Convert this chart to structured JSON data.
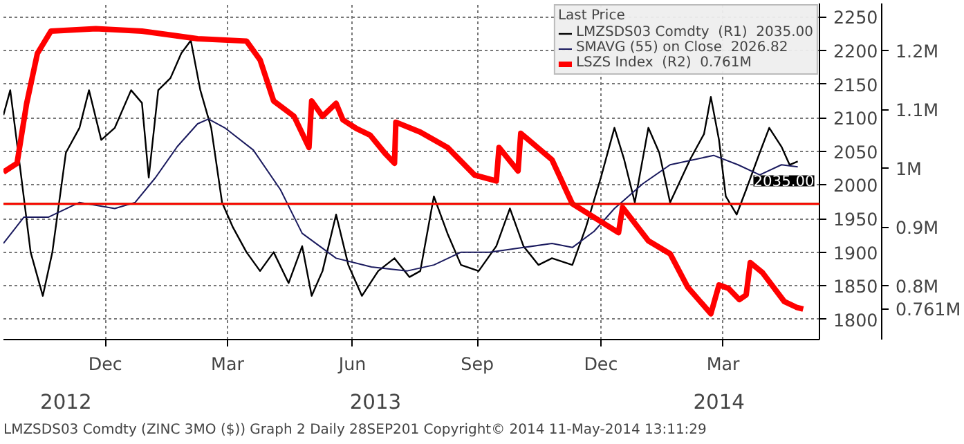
{
  "chart_data": {
    "type": "line",
    "legend_title": "Last Price",
    "series": [
      {
        "name": "LMZSDS03 Comdty  (R1)  2035.00",
        "color": "#000000",
        "x": [
          "2012-10-01",
          "2012-10-06",
          "2012-10-13",
          "2012-10-21",
          "2012-10-30",
          "2012-11-06",
          "2012-11-16",
          "2012-11-26",
          "2012-12-03",
          "2012-12-12",
          "2012-12-22",
          "2013-01-03",
          "2013-01-11",
          "2013-01-16",
          "2013-01-23",
          "2013-02-01",
          "2013-02-09",
          "2013-02-16",
          "2013-02-23",
          "2013-03-03",
          "2013-03-11",
          "2013-03-19",
          "2013-03-29",
          "2013-04-08",
          "2013-04-18",
          "2013-04-29",
          "2013-05-09",
          "2013-05-16",
          "2013-05-24",
          "2013-06-03",
          "2013-06-12",
          "2013-06-22",
          "2013-07-04",
          "2013-07-16",
          "2013-07-27",
          "2013-08-04",
          "2013-08-14",
          "2013-08-24",
          "2013-09-03",
          "2013-09-16",
          "2013-09-29",
          "2013-10-09",
          "2013-10-19",
          "2013-10-30",
          "2013-11-09",
          "2013-11-24",
          "2013-12-04",
          "2013-12-15",
          "2013-12-25",
          "2014-01-01",
          "2014-01-09",
          "2014-01-19",
          "2014-01-27",
          "2014-02-04",
          "2014-02-19",
          "2014-03-01",
          "2014-03-06",
          "2014-03-12",
          "2014-03-17",
          "2014-03-25",
          "2014-04-01",
          "2014-04-11",
          "2014-04-18",
          "2014-04-27",
          "2014-05-03",
          "2014-05-09"
        ],
        "values": [
          2104,
          2141,
          2030,
          1900,
          1835,
          1900,
          2048,
          2085,
          2141,
          2067,
          2085,
          2141,
          2122,
          2011,
          2141,
          2159,
          2196,
          2215,
          2141,
          2085,
          1974,
          1937,
          1900,
          1872,
          1900,
          1854,
          1909,
          1835,
          1872,
          1956,
          1881,
          1835,
          1872,
          1891,
          1863,
          1872,
          1983,
          1928,
          1881,
          1872,
          1909,
          1965,
          1909,
          1881,
          1891,
          1881,
          1937,
          2011,
          2085,
          2039,
          1974,
          2085,
          2048,
          1974,
          2039,
          2076,
          2131,
          2067,
          1983,
          1956,
          1993,
          2048,
          2085,
          2057,
          2030,
          2035
        ]
      },
      {
        "name": "SMAVG (55) on Close  2026.82",
        "color": "#1a1a5e",
        "x": [
          "2012-10-01",
          "2012-10-16",
          "2012-11-03",
          "2012-11-26",
          "2012-12-22",
          "2013-01-06",
          "2013-01-21",
          "2013-02-06",
          "2013-02-21",
          "2013-03-01",
          "2013-03-13",
          "2013-04-03",
          "2013-04-23",
          "2013-05-09",
          "2013-06-03",
          "2013-06-29",
          "2013-07-25",
          "2013-08-14",
          "2013-09-03",
          "2013-09-24",
          "2013-10-19",
          "2013-11-09",
          "2013-11-24",
          "2013-12-10",
          "2013-12-25",
          "2014-01-15",
          "2014-02-04",
          "2014-03-08",
          "2014-03-26",
          "2014-04-11",
          "2014-04-27",
          "2014-05-09"
        ],
        "values": [
          1913,
          1952,
          1952,
          1974,
          1965,
          1974,
          2011,
          2057,
          2091,
          2098,
          2085,
          2052,
          1993,
          1928,
          1891,
          1878,
          1872,
          1881,
          1900,
          1900,
          1907,
          1913,
          1907,
          1931,
          1965,
          2002,
          2030,
          2044,
          2030,
          2015,
          2030,
          2027
        ]
      },
      {
        "name": "LSZS Index  (R2)  0.761M",
        "color": "#ff0000",
        "axis": "y2",
        "x": [
          "2012-10-01",
          "2012-10-11",
          "2012-10-18",
          "2012-10-26",
          "2012-11-05",
          "2012-12-08",
          "2013-01-11",
          "2013-02-21",
          "2013-03-29",
          "2013-04-08",
          "2013-04-18",
          "2013-05-03",
          "2013-05-14",
          "2013-05-16",
          "2013-05-24",
          "2013-06-03",
          "2013-06-08",
          "2013-06-18",
          "2013-06-28",
          "2013-07-09",
          "2013-07-16",
          "2013-07-17",
          "2013-08-04",
          "2013-08-24",
          "2013-09-13",
          "2013-09-29",
          "2013-10-01",
          "2013-10-15",
          "2013-10-17",
          "2013-11-09",
          "2013-11-24",
          "2013-12-28",
          "2013-12-31",
          "2014-01-19",
          "2014-02-04",
          "2014-02-17",
          "2014-03-06",
          "2014-03-12",
          "2014-03-19",
          "2014-03-27",
          "2014-04-01",
          "2014-04-04",
          "2014-04-13",
          "2014-04-29",
          "2014-05-08",
          "2014-05-13"
        ],
        "values": [
          0.994,
          1.009,
          1.11,
          1.196,
          1.234,
          1.238,
          1.234,
          1.221,
          1.217,
          1.185,
          1.115,
          1.089,
          1.036,
          1.115,
          1.089,
          1.111,
          1.083,
          1.068,
          1.057,
          1.026,
          1.009,
          1.079,
          1.062,
          1.036,
          0.989,
          0.979,
          1.036,
          0.996,
          1.06,
          1.015,
          0.94,
          0.891,
          0.934,
          0.877,
          0.855,
          0.798,
          0.753,
          0.802,
          0.796,
          0.777,
          0.785,
          0.84,
          0.823,
          0.774,
          0.764,
          0.761
        ]
      }
    ],
    "xlim": [
      "2012-10-01",
      "2014-05-25"
    ],
    "xticks": [
      {
        "value": "2012-12-15",
        "label": "Dec"
      },
      {
        "value": "2013-03-15",
        "label": "Mar"
      },
      {
        "value": "2013-06-15",
        "label": "Jun"
      },
      {
        "value": "2013-09-15",
        "label": "Sep"
      },
      {
        "value": "2013-12-15",
        "label": "Dec"
      },
      {
        "value": "2014-03-15",
        "label": "Mar"
      }
    ],
    "x2lim": [
      "2012-10-01",
      "2014-05-25"
    ],
    "x2ticks": [
      {
        "value": "2012-11-16",
        "label": "2012"
      },
      {
        "value": "2013-07-02",
        "label": "2013"
      },
      {
        "value": "2014-03-12",
        "label": "2014"
      }
    ],
    "ylim": [
      1770,
      2270
    ],
    "yticks": [
      1800,
      1850,
      1900,
      1950,
      2000,
      2050,
      2100,
      2150,
      2200,
      2250
    ],
    "y2lim": [
      0.709,
      1.281
    ],
    "y2ticks": [
      {
        "value": 0.761,
        "label": "0.761M"
      },
      {
        "value": 0.8,
        "label": "0.8M"
      },
      {
        "value": 0.9,
        "label": "0.9M"
      },
      {
        "value": 1,
        "label": "1M"
      },
      {
        "value": 1.1,
        "label": "1.1M"
      },
      {
        "value": 1.2,
        "label": "1.2M"
      }
    ],
    "ref_lines": [
      {
        "axis": "y",
        "value": 1972,
        "color": "#00cc00"
      },
      {
        "axis": "y",
        "value": 1972,
        "color": "#ff0000"
      }
    ],
    "annotations": [
      {
        "text": "2035.00",
        "x": "2014-05-09",
        "y": 2035
      },
      "LMZSDS03 Comdty (ZINC 3MO ($)) Graph 2",
      "Daily 28SEP201",
      "Copyright© 2014",
      "11-May-2014 13:11:29"
    ],
    "grid": true,
    "legend": "top right",
    "line_style": "solid"
  }
}
